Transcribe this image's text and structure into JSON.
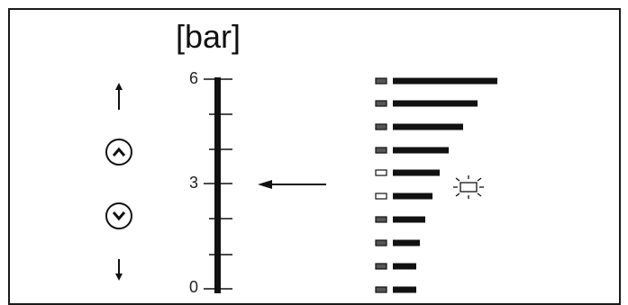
{
  "unit_label": "[bar]",
  "scale": {
    "max_label": "6",
    "mid_label": "3",
    "min_label": "0",
    "current_value": 3
  },
  "controls": {
    "up_arrow_icon": "arrow-up-icon",
    "up_button_icon": "chevron-up-circle-icon",
    "down_button_icon": "chevron-down-circle-icon",
    "down_arrow_icon": "arrow-down-icon"
  },
  "bar_indicator": {
    "segments": [
      {
        "lit": true
      },
      {
        "lit": true
      },
      {
        "lit": true
      },
      {
        "lit": true
      },
      {
        "lit": false,
        "blinking": true
      },
      {
        "lit": false
      },
      {
        "lit": true
      },
      {
        "lit": true
      },
      {
        "lit": true
      },
      {
        "lit": true
      }
    ]
  },
  "colors": {
    "ink": "#111111",
    "background": "#ffffff"
  }
}
